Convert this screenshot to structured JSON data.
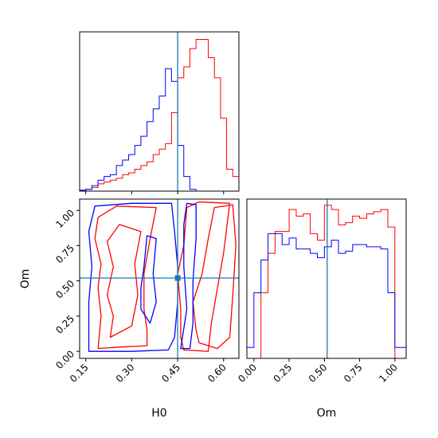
{
  "chart_data": {
    "type": "corner",
    "parameters": [
      "H0",
      "Om"
    ],
    "truths": {
      "H0": 0.45,
      "Om": 0.52
    },
    "colors": {
      "series_a": "#ff0000",
      "series_b": "#0000ff",
      "truth": "#1f77b4"
    },
    "axis_ranges": {
      "H0": [
        0.13,
        0.65
      ],
      "Om": [
        -0.05,
        1.08
      ]
    },
    "ticks": {
      "H0": {
        "values": [
          0.15,
          0.3,
          0.45,
          0.6
        ],
        "labels": [
          "0.15",
          "0.30",
          "0.45",
          "0.60"
        ]
      },
      "Om": {
        "values": [
          0.0,
          0.25,
          0.5,
          0.75,
          1.0
        ],
        "labels": [
          "0.00",
          "0.25",
          "0.50",
          "0.75",
          "1.00"
        ]
      }
    },
    "h0_histogram": {
      "bin_edges": [
        0.13,
        0.15,
        0.17,
        0.19,
        0.21,
        0.23,
        0.25,
        0.27,
        0.29,
        0.31,
        0.33,
        0.35,
        0.37,
        0.39,
        0.41,
        0.43,
        0.45,
        0.47,
        0.49,
        0.51,
        0.53,
        0.55,
        0.57,
        0.59,
        0.61,
        0.63,
        0.65
      ],
      "series_a_counts": [
        0.5,
        1,
        2,
        4,
        5,
        6,
        7,
        9,
        10,
        12,
        14,
        16,
        20,
        23,
        26,
        43,
        62,
        68,
        78,
        83,
        83,
        73,
        62,
        40,
        12,
        8
      ],
      "series_b_counts": [
        0.5,
        1,
        3,
        6,
        8,
        9,
        14,
        17,
        20,
        25,
        30,
        38,
        45,
        52,
        67,
        60,
        25,
        8,
        1,
        0,
        0,
        0,
        0,
        0,
        0,
        0
      ]
    },
    "om_histogram": {
      "bin_edges": [
        -0.05,
        0.0,
        0.05,
        0.1,
        0.15,
        0.2,
        0.25,
        0.3,
        0.35,
        0.4,
        0.45,
        0.5,
        0.55,
        0.6,
        0.65,
        0.7,
        0.75,
        0.8,
        0.85,
        0.9,
        0.95,
        1.0,
        1.05,
        1.08
      ],
      "series_a_counts": [
        0,
        0,
        30,
        48,
        58,
        58,
        68,
        65,
        66,
        57,
        54,
        70,
        68,
        61,
        62,
        65,
        64,
        66,
        67,
        68,
        60,
        0,
        0
      ],
      "series_b_counts": [
        5,
        30,
        45,
        57,
        57,
        52,
        55,
        50,
        50,
        48,
        46,
        51,
        54,
        48,
        49,
        52,
        52,
        51,
        51,
        50,
        30,
        5,
        5
      ]
    },
    "contours_2d": {
      "series_a": [
        [
          [
            0.19,
            0.02
          ],
          [
            0.26,
            0.03
          ],
          [
            0.35,
            0.04
          ],
          [
            0.35,
            0.15
          ],
          [
            0.34,
            0.3
          ],
          [
            0.34,
            0.55
          ],
          [
            0.36,
            0.8
          ],
          [
            0.38,
            1.02
          ],
          [
            0.25,
            1.03
          ],
          [
            0.19,
            0.95
          ],
          [
            0.18,
            0.8
          ],
          [
            0.2,
            0.62
          ],
          [
            0.19,
            0.45
          ],
          [
            0.2,
            0.25
          ],
          [
            0.19,
            0.02
          ]
        ],
        [
          [
            0.23,
            0.1
          ],
          [
            0.3,
            0.18
          ],
          [
            0.32,
            0.4
          ],
          [
            0.31,
            0.62
          ],
          [
            0.33,
            0.85
          ],
          [
            0.26,
            0.9
          ],
          [
            0.22,
            0.78
          ],
          [
            0.24,
            0.6
          ],
          [
            0.22,
            0.4
          ],
          [
            0.24,
            0.25
          ],
          [
            0.23,
            0.1
          ]
        ],
        [
          [
            0.47,
            0.01
          ],
          [
            0.55,
            0.0
          ],
          [
            0.56,
            0.2
          ],
          [
            0.58,
            0.45
          ],
          [
            0.6,
            0.7
          ],
          [
            0.62,
            1.05
          ],
          [
            0.52,
            1.06
          ],
          [
            0.48,
            1.02
          ],
          [
            0.47,
            0.75
          ],
          [
            0.45,
            0.55
          ],
          [
            0.46,
            0.3
          ],
          [
            0.46,
            0.1
          ],
          [
            0.47,
            0.01
          ]
        ],
        [
          [
            0.52,
            0.06
          ],
          [
            0.58,
            0.02
          ],
          [
            0.62,
            0.1
          ],
          [
            0.63,
            0.4
          ],
          [
            0.64,
            0.75
          ],
          [
            0.63,
            1.04
          ],
          [
            0.57,
            1.02
          ],
          [
            0.55,
            0.8
          ],
          [
            0.53,
            0.55
          ],
          [
            0.5,
            0.35
          ],
          [
            0.51,
            0.15
          ],
          [
            0.52,
            0.06
          ]
        ]
      ],
      "series_b": [
        [
          [
            0.16,
            0.0
          ],
          [
            0.3,
            0.0
          ],
          [
            0.42,
            0.01
          ],
          [
            0.44,
            0.1
          ],
          [
            0.45,
            0.35
          ],
          [
            0.45,
            0.6
          ],
          [
            0.44,
            0.85
          ],
          [
            0.43,
            1.05
          ],
          [
            0.3,
            1.05
          ],
          [
            0.18,
            1.03
          ],
          [
            0.16,
            0.85
          ],
          [
            0.17,
            0.6
          ],
          [
            0.16,
            0.35
          ],
          [
            0.16,
            0.0
          ]
        ],
        [
          [
            0.46,
            0.02
          ],
          [
            0.48,
            0.3
          ],
          [
            0.47,
            0.6
          ],
          [
            0.47,
            0.9
          ],
          [
            0.48,
            1.05
          ],
          [
            0.51,
            1.04
          ],
          [
            0.51,
            0.8
          ],
          [
            0.5,
            0.5
          ],
          [
            0.5,
            0.2
          ],
          [
            0.49,
            0.02
          ],
          [
            0.46,
            0.02
          ]
        ],
        [
          [
            0.33,
            0.3
          ],
          [
            0.36,
            0.2
          ],
          [
            0.38,
            0.35
          ],
          [
            0.37,
            0.55
          ],
          [
            0.38,
            0.8
          ],
          [
            0.35,
            0.82
          ],
          [
            0.34,
            0.6
          ],
          [
            0.33,
            0.45
          ],
          [
            0.33,
            0.3
          ]
        ]
      ]
    }
  }
}
